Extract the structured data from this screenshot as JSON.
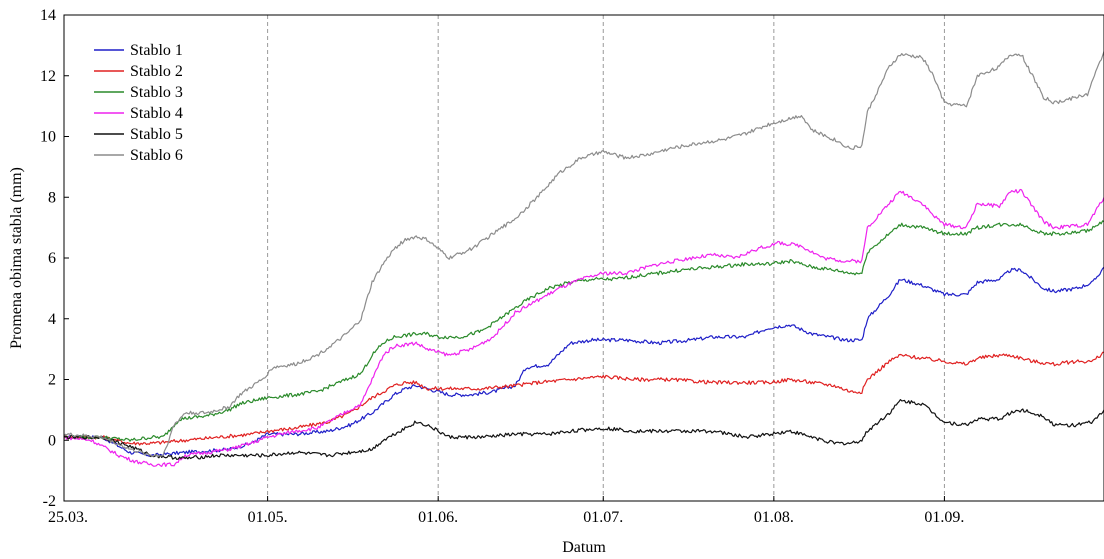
{
  "chart_data": {
    "type": "line",
    "xlabel": "Datum",
    "ylabel": "Promena obima stabla (mm)",
    "x_ticks": [
      {
        "day": 0,
        "label": "25.03."
      },
      {
        "day": 37,
        "label": "01.05."
      },
      {
        "day": 68,
        "label": "01.06."
      },
      {
        "day": 98,
        "label": "01.07."
      },
      {
        "day": 129,
        "label": "01.08."
      },
      {
        "day": 160,
        "label": "01.09."
      }
    ],
    "xlim": [
      0,
      189
    ],
    "ylim": [
      -2,
      14
    ],
    "y_ticks": [
      -2,
      0,
      2,
      4,
      6,
      8,
      10,
      12,
      14
    ],
    "vertical_dashed_grid_at_days": [
      37,
      68,
      98,
      129,
      160
    ],
    "legend_position": "top-left",
    "series": [
      {
        "name": "Stablo 1",
        "color": "#1f1fc8",
        "points": [
          [
            0,
            0.1
          ],
          [
            7,
            0.1
          ],
          [
            12,
            -0.4
          ],
          [
            16,
            -0.5
          ],
          [
            22,
            -0.4
          ],
          [
            30,
            -0.3
          ],
          [
            34,
            -0.1
          ],
          [
            37,
            0.2
          ],
          [
            42,
            0.2
          ],
          [
            48,
            0.3
          ],
          [
            52,
            0.5
          ],
          [
            56,
            0.9
          ],
          [
            60,
            1.5
          ],
          [
            62,
            1.7
          ],
          [
            64,
            1.8
          ],
          [
            66,
            1.7
          ],
          [
            70,
            1.5
          ],
          [
            74,
            1.5
          ],
          [
            78,
            1.6
          ],
          [
            82,
            1.8
          ],
          [
            84,
            2.4
          ],
          [
            88,
            2.5
          ],
          [
            92,
            3.2
          ],
          [
            96,
            3.3
          ],
          [
            102,
            3.3
          ],
          [
            108,
            3.2
          ],
          [
            114,
            3.3
          ],
          [
            118,
            3.4
          ],
          [
            124,
            3.4
          ],
          [
            128,
            3.7
          ],
          [
            132,
            3.8
          ],
          [
            136,
            3.5
          ],
          [
            142,
            3.3
          ],
          [
            145,
            3.3
          ],
          [
            146,
            4.0
          ],
          [
            150,
            4.8
          ],
          [
            152,
            5.3
          ],
          [
            156,
            5.1
          ],
          [
            160,
            4.8
          ],
          [
            164,
            4.8
          ],
          [
            166,
            5.2
          ],
          [
            170,
            5.3
          ],
          [
            172,
            5.6
          ],
          [
            174,
            5.6
          ],
          [
            178,
            5.0
          ],
          [
            180,
            4.9
          ],
          [
            184,
            5.0
          ],
          [
            187,
            5.2
          ],
          [
            189,
            5.7
          ]
        ]
      },
      {
        "name": "Stablo 2",
        "color": "#e02020",
        "points": [
          [
            0,
            0.1
          ],
          [
            7,
            0.1
          ],
          [
            12,
            -0.1
          ],
          [
            16,
            -0.1
          ],
          [
            22,
            0.0
          ],
          [
            28,
            0.1
          ],
          [
            34,
            0.2
          ],
          [
            37,
            0.3
          ],
          [
            42,
            0.4
          ],
          [
            48,
            0.6
          ],
          [
            52,
            0.9
          ],
          [
            56,
            1.4
          ],
          [
            60,
            1.8
          ],
          [
            62,
            1.9
          ],
          [
            64,
            1.9
          ],
          [
            66,
            1.7
          ],
          [
            70,
            1.7
          ],
          [
            76,
            1.7
          ],
          [
            82,
            1.8
          ],
          [
            86,
            1.9
          ],
          [
            92,
            2.0
          ],
          [
            98,
            2.1
          ],
          [
            104,
            2.0
          ],
          [
            110,
            2.0
          ],
          [
            118,
            1.9
          ],
          [
            124,
            1.9
          ],
          [
            128,
            1.9
          ],
          [
            132,
            2.0
          ],
          [
            136,
            1.9
          ],
          [
            140,
            1.8
          ],
          [
            143,
            1.6
          ],
          [
            145,
            1.6
          ],
          [
            146,
            2.0
          ],
          [
            150,
            2.6
          ],
          [
            152,
            2.8
          ],
          [
            156,
            2.7
          ],
          [
            160,
            2.6
          ],
          [
            164,
            2.5
          ],
          [
            166,
            2.7
          ],
          [
            170,
            2.8
          ],
          [
            172,
            2.8
          ],
          [
            176,
            2.6
          ],
          [
            180,
            2.5
          ],
          [
            184,
            2.6
          ],
          [
            187,
            2.6
          ],
          [
            189,
            2.9
          ]
        ]
      },
      {
        "name": "Stablo 3",
        "color": "#2a8a2a",
        "points": [
          [
            0,
            0.1
          ],
          [
            7,
            0.1
          ],
          [
            12,
            0.0
          ],
          [
            16,
            0.1
          ],
          [
            18,
            0.1
          ],
          [
            21,
            0.7
          ],
          [
            26,
            0.8
          ],
          [
            30,
            1.0
          ],
          [
            32,
            1.2
          ],
          [
            37,
            1.4
          ],
          [
            42,
            1.5
          ],
          [
            46,
            1.6
          ],
          [
            50,
            1.9
          ],
          [
            54,
            2.2
          ],
          [
            56,
            2.8
          ],
          [
            58,
            3.2
          ],
          [
            60,
            3.4
          ],
          [
            64,
            3.5
          ],
          [
            66,
            3.5
          ],
          [
            68,
            3.4
          ],
          [
            72,
            3.4
          ],
          [
            76,
            3.6
          ],
          [
            80,
            4.1
          ],
          [
            84,
            4.6
          ],
          [
            88,
            5.0
          ],
          [
            92,
            5.2
          ],
          [
            96,
            5.3
          ],
          [
            100,
            5.3
          ],
          [
            104,
            5.4
          ],
          [
            108,
            5.5
          ],
          [
            112,
            5.6
          ],
          [
            118,
            5.7
          ],
          [
            124,
            5.8
          ],
          [
            128,
            5.8
          ],
          [
            132,
            5.9
          ],
          [
            136,
            5.7
          ],
          [
            140,
            5.6
          ],
          [
            143,
            5.5
          ],
          [
            145,
            5.5
          ],
          [
            146,
            6.2
          ],
          [
            150,
            6.8
          ],
          [
            152,
            7.1
          ],
          [
            156,
            7.0
          ],
          [
            160,
            6.8
          ],
          [
            164,
            6.8
          ],
          [
            166,
            7.0
          ],
          [
            170,
            7.1
          ],
          [
            174,
            7.1
          ],
          [
            178,
            6.8
          ],
          [
            182,
            6.8
          ],
          [
            186,
            6.9
          ],
          [
            189,
            7.2
          ]
        ]
      },
      {
        "name": "Stablo 4",
        "color": "#ee22ee",
        "points": [
          [
            0,
            0.1
          ],
          [
            5,
            0.0
          ],
          [
            7,
            -0.2
          ],
          [
            10,
            -0.5
          ],
          [
            13,
            -0.7
          ],
          [
            16,
            -0.8
          ],
          [
            20,
            -0.8
          ],
          [
            22,
            -0.5
          ],
          [
            26,
            -0.4
          ],
          [
            30,
            -0.3
          ],
          [
            34,
            -0.1
          ],
          [
            37,
            0.1
          ],
          [
            42,
            0.3
          ],
          [
            46,
            0.4
          ],
          [
            50,
            0.8
          ],
          [
            54,
            1.2
          ],
          [
            56,
            2.0
          ],
          [
            58,
            2.8
          ],
          [
            60,
            3.1
          ],
          [
            64,
            3.2
          ],
          [
            66,
            3.0
          ],
          [
            70,
            2.8
          ],
          [
            74,
            3.0
          ],
          [
            78,
            3.4
          ],
          [
            82,
            4.2
          ],
          [
            86,
            4.6
          ],
          [
            90,
            5.0
          ],
          [
            94,
            5.3
          ],
          [
            98,
            5.5
          ],
          [
            102,
            5.5
          ],
          [
            108,
            5.8
          ],
          [
            114,
            6.0
          ],
          [
            118,
            6.1
          ],
          [
            122,
            6.0
          ],
          [
            126,
            6.3
          ],
          [
            130,
            6.5
          ],
          [
            134,
            6.4
          ],
          [
            138,
            6.0
          ],
          [
            142,
            5.9
          ],
          [
            145,
            5.9
          ],
          [
            146,
            7.0
          ],
          [
            150,
            7.8
          ],
          [
            152,
            8.2
          ],
          [
            156,
            7.8
          ],
          [
            158,
            7.4
          ],
          [
            160,
            7.1
          ],
          [
            164,
            7.0
          ],
          [
            166,
            7.8
          ],
          [
            170,
            7.7
          ],
          [
            172,
            8.2
          ],
          [
            174,
            8.2
          ],
          [
            178,
            7.2
          ],
          [
            180,
            7.0
          ],
          [
            186,
            7.1
          ],
          [
            189,
            8.0
          ]
        ]
      },
      {
        "name": "Stablo 5",
        "color": "#111111",
        "points": [
          [
            0,
            0.1
          ],
          [
            7,
            0.1
          ],
          [
            12,
            -0.2
          ],
          [
            16,
            -0.5
          ],
          [
            22,
            -0.6
          ],
          [
            28,
            -0.5
          ],
          [
            34,
            -0.5
          ],
          [
            37,
            -0.5
          ],
          [
            42,
            -0.4
          ],
          [
            48,
            -0.5
          ],
          [
            52,
            -0.4
          ],
          [
            56,
            -0.3
          ],
          [
            58,
            0.0
          ],
          [
            62,
            0.4
          ],
          [
            64,
            0.6
          ],
          [
            66,
            0.5
          ],
          [
            68,
            0.3
          ],
          [
            70,
            0.1
          ],
          [
            76,
            0.1
          ],
          [
            82,
            0.2
          ],
          [
            88,
            0.2
          ],
          [
            92,
            0.3
          ],
          [
            98,
            0.4
          ],
          [
            104,
            0.3
          ],
          [
            110,
            0.3
          ],
          [
            118,
            0.3
          ],
          [
            124,
            0.1
          ],
          [
            128,
            0.2
          ],
          [
            132,
            0.3
          ],
          [
            136,
            0.1
          ],
          [
            140,
            -0.1
          ],
          [
            143,
            -0.1
          ],
          [
            145,
            0.0
          ],
          [
            146,
            0.3
          ],
          [
            150,
            0.9
          ],
          [
            152,
            1.3
          ],
          [
            156,
            1.2
          ],
          [
            158,
            0.9
          ],
          [
            160,
            0.6
          ],
          [
            164,
            0.5
          ],
          [
            166,
            0.7
          ],
          [
            170,
            0.7
          ],
          [
            172,
            0.9
          ],
          [
            174,
            1.0
          ],
          [
            178,
            0.8
          ],
          [
            180,
            0.5
          ],
          [
            184,
            0.5
          ],
          [
            187,
            0.6
          ],
          [
            189,
            1.0
          ]
        ]
      },
      {
        "name": "Stablo 6",
        "color": "#8c8c8c",
        "points": [
          [
            0,
            0.2
          ],
          [
            7,
            0.1
          ],
          [
            12,
            -0.3
          ],
          [
            16,
            -0.5
          ],
          [
            18,
            -0.5
          ],
          [
            20,
            0.5
          ],
          [
            22,
            0.9
          ],
          [
            26,
            0.9
          ],
          [
            30,
            1.1
          ],
          [
            32,
            1.5
          ],
          [
            36,
            2.0
          ],
          [
            38,
            2.4
          ],
          [
            42,
            2.5
          ],
          [
            46,
            2.8
          ],
          [
            50,
            3.3
          ],
          [
            52,
            3.6
          ],
          [
            54,
            4.0
          ],
          [
            56,
            5.2
          ],
          [
            58,
            5.8
          ],
          [
            60,
            6.3
          ],
          [
            62,
            6.6
          ],
          [
            64,
            6.7
          ],
          [
            66,
            6.6
          ],
          [
            68,
            6.3
          ],
          [
            70,
            6.0
          ],
          [
            74,
            6.3
          ],
          [
            78,
            6.8
          ],
          [
            82,
            7.3
          ],
          [
            86,
            8.0
          ],
          [
            90,
            8.8
          ],
          [
            94,
            9.3
          ],
          [
            98,
            9.5
          ],
          [
            102,
            9.3
          ],
          [
            106,
            9.4
          ],
          [
            110,
            9.6
          ],
          [
            116,
            9.8
          ],
          [
            120,
            9.9
          ],
          [
            124,
            10.1
          ],
          [
            128,
            10.4
          ],
          [
            132,
            10.6
          ],
          [
            134,
            10.7
          ],
          [
            136,
            10.2
          ],
          [
            140,
            9.9
          ],
          [
            143,
            9.6
          ],
          [
            145,
            9.7
          ],
          [
            146,
            10.8
          ],
          [
            150,
            12.3
          ],
          [
            152,
            12.7
          ],
          [
            156,
            12.6
          ],
          [
            158,
            12.0
          ],
          [
            160,
            11.1
          ],
          [
            164,
            11.0
          ],
          [
            166,
            12.0
          ],
          [
            170,
            12.3
          ],
          [
            172,
            12.7
          ],
          [
            174,
            12.7
          ],
          [
            178,
            11.3
          ],
          [
            180,
            11.1
          ],
          [
            186,
            11.4
          ],
          [
            189,
            12.8
          ]
        ]
      }
    ]
  }
}
